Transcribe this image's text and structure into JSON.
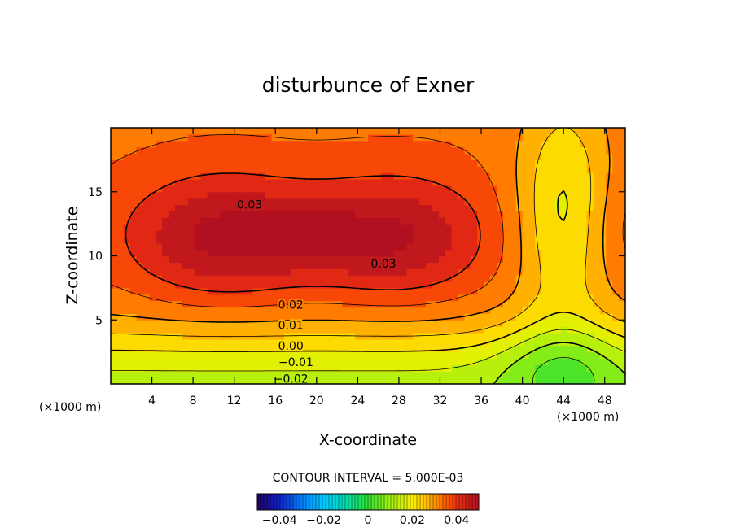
{
  "chart_data": {
    "type": "heatmap",
    "title": "disturbunce of Exner",
    "xlabel": "X-coordinate",
    "ylabel": "Z-coordinate",
    "x_unit": "(×1000 m)",
    "z_unit": "(×1000 m)",
    "xlim": [
      0,
      50
    ],
    "ylim": [
      0,
      20
    ],
    "x_ticks": [
      "4",
      "8",
      "12",
      "16",
      "20",
      "24",
      "28",
      "32",
      "36",
      "40",
      "44",
      "48"
    ],
    "y_ticks": [
      "5",
      "10",
      "15"
    ],
    "x_tick_values": [
      4,
      8,
      12,
      16,
      20,
      24,
      28,
      32,
      36,
      40,
      44,
      48
    ],
    "y_tick_values": [
      5,
      10,
      15
    ],
    "contour_interval_text": "CONTOUR INTERVAL = 5.000E-03",
    "contour_interval": 0.005,
    "value_range": [
      -0.05,
      0.05
    ],
    "contour_labels": [
      {
        "text": "0.03",
        "x": 13.5,
        "z": 14.0
      },
      {
        "text": "0.03",
        "x": 26.5,
        "z": 9.4
      },
      {
        "text": "0.02",
        "x": 17.5,
        "z": 6.2
      },
      {
        "text": "0.01",
        "x": 17.5,
        "z": 4.6
      },
      {
        "text": "0.00",
        "x": 17.5,
        "z": 3.0
      },
      {
        "text": "−0.01",
        "x": 18.0,
        "z": 1.7
      },
      {
        "text": "−0.02",
        "x": 17.5,
        "z": 0.4
      }
    ],
    "colorbar": {
      "ticks": [
        "−0.04",
        "−0.02",
        "0",
        "0.02",
        "0.04"
      ],
      "tick_values": [
        -0.04,
        -0.02,
        0,
        0.02,
        0.04
      ]
    },
    "field_description": "two maxima near (11,11.5) and (28,11.5) about 0.034; values decrease to about -0.03 at z=0; saddle/minimum column near x=44"
  }
}
